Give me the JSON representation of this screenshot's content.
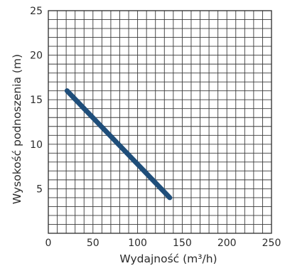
{
  "chart_data": {
    "type": "line",
    "xlabel": "Wydajność (m³/h)",
    "ylabel": "Wysokość podnoszenia (m)",
    "xlim": [
      0,
      250
    ],
    "ylim": [
      0,
      25
    ],
    "x_ticks": [
      0,
      50,
      100,
      150,
      200,
      250
    ],
    "y_ticks": [
      5,
      10,
      15,
      20,
      25
    ],
    "grid": true,
    "grid_minor_step_x": 10,
    "grid_minor_step_y": 1,
    "legend": "none",
    "series": [
      {
        "color": "#1f4e7a",
        "x": [
          21,
          136
        ],
        "y": [
          16,
          4
        ]
      }
    ]
  }
}
